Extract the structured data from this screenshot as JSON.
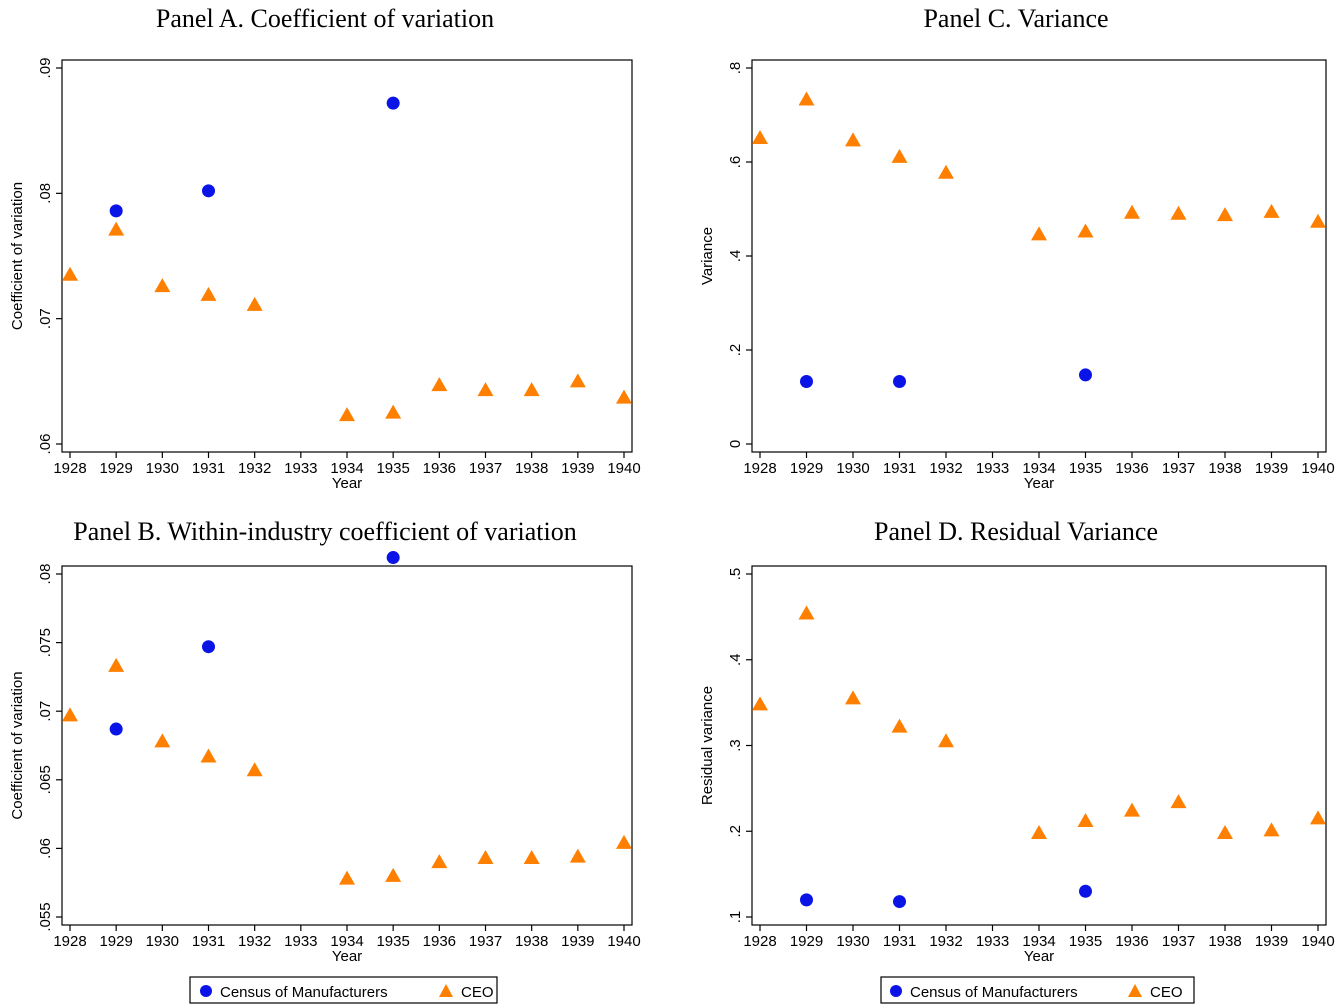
{
  "colors": {
    "census": "#0a14e6",
    "ceo": "#ff8000"
  },
  "legend": {
    "census_label": "Census of Manufacturers",
    "ceo_label": "CEO"
  },
  "chart_data": [
    {
      "id": "A",
      "type": "scatter",
      "title": "Panel A. Coefficient of variation",
      "xlabel": "Year",
      "ylabel": "Coefficient of variation",
      "x_ticks": [
        1928,
        1929,
        1930,
        1931,
        1932,
        1933,
        1934,
        1935,
        1936,
        1937,
        1938,
        1939,
        1940
      ],
      "y_ticks": [
        0.06,
        0.07,
        0.08,
        0.09
      ],
      "y_tick_labels": [
        ".06",
        ".07",
        ".08",
        ".09"
      ],
      "xlim": [
        1928,
        1940
      ],
      "ylim": [
        0.06,
        0.09
      ],
      "series": [
        {
          "name": "Census of Manufacturers",
          "marker": "circle",
          "x": [
            1929,
            1931,
            1935
          ],
          "y": [
            0.0786,
            0.0802,
            0.0872
          ]
        },
        {
          "name": "CEO",
          "marker": "triangle",
          "x": [
            1928,
            1929,
            1930,
            1931,
            1932,
            1934,
            1935,
            1936,
            1937,
            1938,
            1939,
            1940
          ],
          "y": [
            0.0735,
            0.0771,
            0.0726,
            0.0719,
            0.0711,
            0.0623,
            0.0625,
            0.0647,
            0.0643,
            0.0643,
            0.065,
            0.0637
          ]
        }
      ]
    },
    {
      "id": "C",
      "type": "scatter",
      "title": "Panel C. Variance",
      "xlabel": "Year",
      "ylabel": "Variance",
      "x_ticks": [
        1928,
        1929,
        1930,
        1931,
        1932,
        1933,
        1934,
        1935,
        1936,
        1937,
        1938,
        1939,
        1940
      ],
      "y_ticks": [
        0,
        0.2,
        0.4,
        0.6,
        0.8
      ],
      "y_tick_labels": [
        "0",
        ".2",
        ".4",
        ".6",
        ".8"
      ],
      "xlim": [
        1928,
        1940
      ],
      "ylim": [
        0,
        0.8
      ],
      "series": [
        {
          "name": "Census of Manufacturers",
          "marker": "circle",
          "x": [
            1929,
            1931,
            1935
          ],
          "y": [
            0.133,
            0.133,
            0.147
          ]
        },
        {
          "name": "CEO",
          "marker": "triangle",
          "x": [
            1928,
            1929,
            1930,
            1931,
            1932,
            1934,
            1935,
            1936,
            1937,
            1938,
            1939,
            1940
          ],
          "y": [
            0.651,
            0.733,
            0.646,
            0.611,
            0.577,
            0.446,
            0.452,
            0.492,
            0.49,
            0.487,
            0.494,
            0.473
          ]
        }
      ]
    },
    {
      "id": "B",
      "type": "scatter",
      "title": "Panel B. Within-industry coefficient of variation",
      "xlabel": "Year",
      "ylabel": "Coefficient of variation",
      "x_ticks": [
        1928,
        1929,
        1930,
        1931,
        1932,
        1933,
        1934,
        1935,
        1936,
        1937,
        1938,
        1939,
        1940
      ],
      "y_ticks": [
        0.055,
        0.06,
        0.065,
        0.07,
        0.075,
        0.08
      ],
      "y_tick_labels": [
        ".055",
        ".06",
        ".065",
        ".07",
        ".075",
        ".08"
      ],
      "xlim": [
        1928,
        1940
      ],
      "ylim": [
        0.055,
        0.08
      ],
      "series": [
        {
          "name": "Census of Manufacturers",
          "marker": "circle",
          "x": [
            1929,
            1931,
            1935
          ],
          "y": [
            0.0687,
            0.0747,
            0.0812
          ]
        },
        {
          "name": "CEO",
          "marker": "triangle",
          "x": [
            1928,
            1929,
            1930,
            1931,
            1932,
            1934,
            1935,
            1936,
            1937,
            1938,
            1939,
            1940
          ],
          "y": [
            0.0697,
            0.0733,
            0.0678,
            0.0667,
            0.0657,
            0.0578,
            0.058,
            0.059,
            0.0593,
            0.0593,
            0.0594,
            0.0604
          ]
        }
      ]
    },
    {
      "id": "D",
      "type": "scatter",
      "title": "Panel D. Residual Variance",
      "xlabel": "Year",
      "ylabel": "Residual variance",
      "x_ticks": [
        1928,
        1929,
        1930,
        1931,
        1932,
        1933,
        1934,
        1935,
        1936,
        1937,
        1938,
        1939,
        1940
      ],
      "y_ticks": [
        0.1,
        0.2,
        0.3,
        0.4,
        0.5
      ],
      "y_tick_labels": [
        ".1",
        ".2",
        ".3",
        ".4",
        ".5"
      ],
      "xlim": [
        1928,
        1940
      ],
      "ylim": [
        0.1,
        0.5
      ],
      "series": [
        {
          "name": "Census of Manufacturers",
          "marker": "circle",
          "x": [
            1929,
            1931,
            1935
          ],
          "y": [
            0.12,
            0.118,
            0.13
          ]
        },
        {
          "name": "CEO",
          "marker": "triangle",
          "x": [
            1928,
            1929,
            1930,
            1931,
            1932,
            1934,
            1935,
            1936,
            1937,
            1938,
            1939,
            1940
          ],
          "y": [
            0.348,
            0.454,
            0.355,
            0.322,
            0.305,
            0.198,
            0.212,
            0.224,
            0.234,
            0.198,
            0.201,
            0.215
          ]
        }
      ]
    }
  ]
}
